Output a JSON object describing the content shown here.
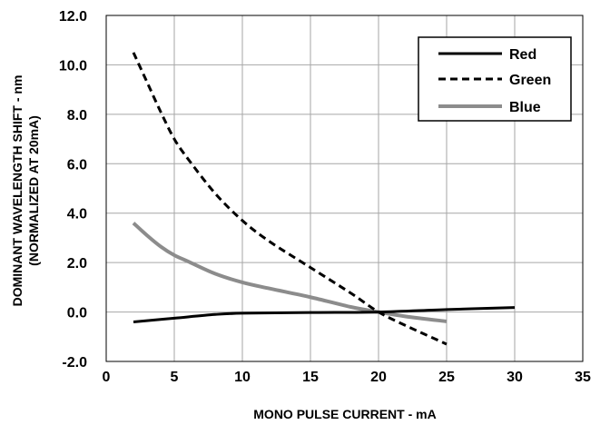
{
  "chart_data": {
    "type": "line",
    "xlabel": "MONO PULSE CURRENT - mA",
    "ylabel_lines": [
      "DOMINANT WAVELENGTH SHIFT - nm",
      "(NORMALIZED AT 20mA)"
    ],
    "xlim": [
      0,
      35
    ],
    "ylim": [
      -2,
      12
    ],
    "x_ticks": [
      "0",
      "5",
      "10",
      "15",
      "20",
      "25",
      "30",
      "35"
    ],
    "x_tick_values": [
      0,
      5,
      10,
      15,
      20,
      25,
      30,
      35
    ],
    "y_ticks": [
      "-2.0",
      "0.0",
      "2.0",
      "4.0",
      "6.0",
      "8.0",
      "10.0",
      "12.0"
    ],
    "y_tick_values": [
      -2,
      0,
      2,
      4,
      6,
      8,
      10,
      12
    ],
    "grid": true,
    "legend_position": "top-right",
    "series": [
      {
        "name": "Red",
        "color": "#000000",
        "dash": "solid",
        "x": [
          2,
          5,
          8,
          10,
          15,
          20,
          25,
          30
        ],
        "y": [
          -0.4,
          -0.25,
          -0.1,
          -0.05,
          -0.02,
          0.0,
          0.1,
          0.18
        ]
      },
      {
        "name": "Green",
        "color": "#000000",
        "dash": "dashed",
        "x": [
          2,
          3,
          4,
          5,
          6,
          8,
          10,
          12,
          15,
          18,
          20,
          22,
          25
        ],
        "y": [
          10.5,
          9.3,
          8.1,
          7.0,
          6.2,
          4.8,
          3.7,
          2.85,
          1.8,
          0.75,
          0.0,
          -0.55,
          -1.3
        ]
      },
      {
        "name": "Blue",
        "color": "#8c8c8c",
        "dash": "solid",
        "x": [
          2,
          3,
          4,
          5,
          6,
          8,
          10,
          12,
          15,
          18,
          20,
          22,
          25
        ],
        "y": [
          3.6,
          3.1,
          2.65,
          2.3,
          2.05,
          1.55,
          1.2,
          0.95,
          0.6,
          0.2,
          0.0,
          -0.18,
          -0.38
        ]
      }
    ]
  }
}
